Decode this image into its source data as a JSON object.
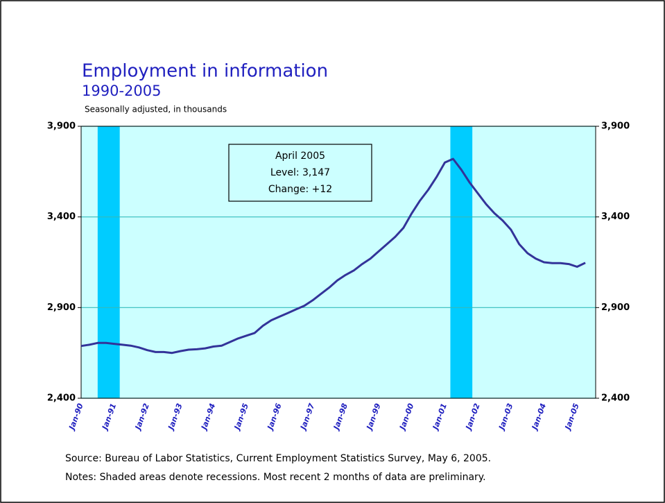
{
  "chart_data": {
    "type": "line",
    "title": "Employment in information",
    "subtitle": "1990-2005",
    "y_axis_label": "Seasonally adjusted, in thousands",
    "annotation": [
      "April 2005",
      "Level: 3,147",
      "Change: +12"
    ],
    "source": "Source:  Bureau of Labor Statistics, Current Employment Statistics Survey, May 6, 2005.",
    "notes": "Notes:  Shaded areas denote recessions.  Most recent 2 months of data are preliminary.",
    "categories": [
      "Jan-90",
      null,
      null,
      null,
      "Jan-91",
      null,
      null,
      null,
      "Jan-92",
      null,
      null,
      null,
      "Jan-93",
      null,
      null,
      null,
      "Jan-94",
      null,
      null,
      null,
      "Jan-95",
      null,
      null,
      null,
      "Jan-96",
      null,
      null,
      null,
      "Jan-97",
      null,
      null,
      null,
      "Jan-98",
      null,
      null,
      null,
      "Jan-99",
      null,
      null,
      null,
      "Jan-00",
      null,
      null,
      null,
      "Jan-01",
      null,
      null,
      null,
      "Jan-02",
      null,
      null,
      null,
      "Jan-03",
      null,
      null,
      null,
      "Jan-04",
      null,
      null,
      null,
      "Jan-05",
      null
    ],
    "series": [
      {
        "name": "Employment in information",
        "color": "#333399",
        "values": [
          2688,
          2695,
          2705,
          2705,
          2700,
          2695,
          2690,
          2680,
          2665,
          2655,
          2655,
          2650,
          2660,
          2668,
          2670,
          2675,
          2685,
          2690,
          2710,
          2730,
          2745,
          2760,
          2800,
          2830,
          2850,
          2870,
          2890,
          2910,
          2940,
          2975,
          3010,
          3050,
          3080,
          3105,
          3140,
          3170,
          3210,
          3250,
          3290,
          3340,
          3420,
          3490,
          3550,
          3620,
          3700,
          3720,
          3660,
          3590,
          3530,
          3470,
          3420,
          3380,
          3330,
          3250,
          3200,
          3170,
          3150,
          3145,
          3145,
          3140,
          3125,
          3147
        ]
      }
    ],
    "recessions": [
      [
        2,
        4.67
      ],
      [
        44.67,
        47.33
      ]
    ],
    "recession_color": "#00ccff",
    "plot_color": "#ccffff",
    "ylim": [
      2400,
      3900
    ],
    "yticks": [
      {
        "value": 2400,
        "label": "2,400"
      },
      {
        "value": 2900,
        "label": "2,900"
      },
      {
        "value": 3400,
        "label": "3,400"
      },
      {
        "value": 3900,
        "label": "3,900"
      }
    ],
    "y2lim": [
      2400,
      3900
    ],
    "y2ticks": [
      {
        "value": 2400,
        "label": "2,400"
      },
      {
        "value": 2900,
        "label": "2,900"
      },
      {
        "value": 3400,
        "label": "3,400"
      },
      {
        "value": 3900,
        "label": "3,900"
      }
    ],
    "grid": true
  }
}
